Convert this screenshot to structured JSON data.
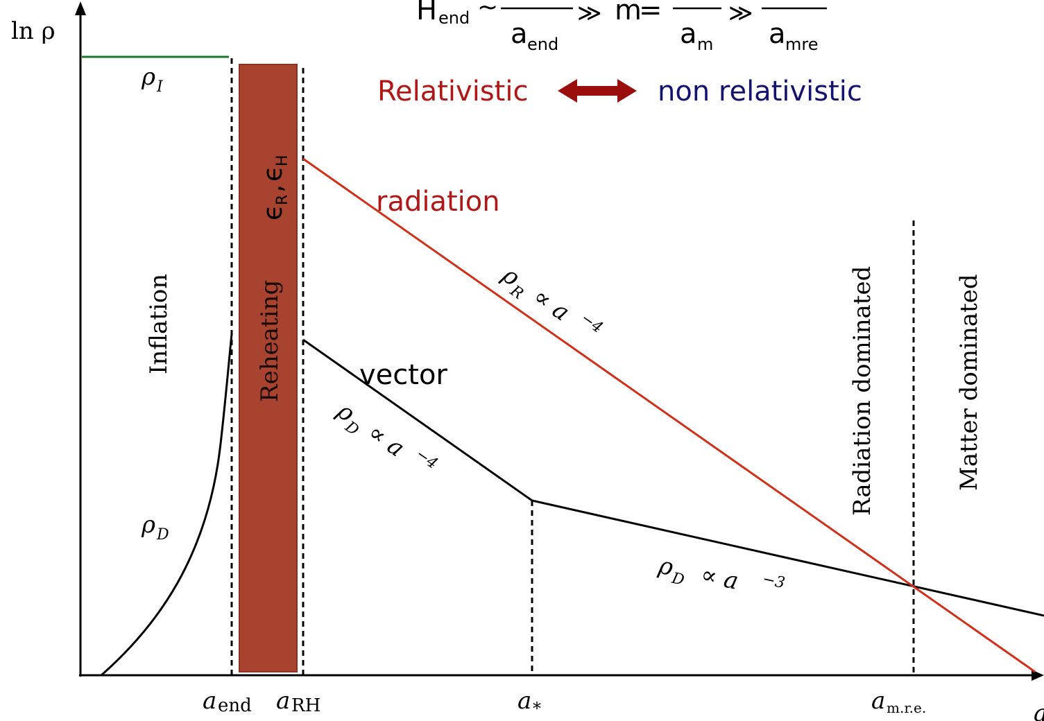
{
  "header": {
    "formula": {
      "h": "H",
      "h_sub": "end",
      "sim": "~",
      "gg1": "≫",
      "m": "m",
      "eq": "=",
      "gg2": "≫",
      "den1": "a",
      "den1_sub": "end",
      "den2": "a",
      "den2_sub": "m",
      "den3": "a",
      "den3_sub": "mre"
    },
    "relativistic": "Relativistic",
    "non_relativistic": "non relativistic"
  },
  "axes": {
    "y_label": "ln ρ",
    "x_label": "a",
    "ticks": {
      "a_end": "a",
      "a_end_sub": "end",
      "a_rh": "a",
      "a_rh_sub": "RH",
      "a_star": "a",
      "a_star_sub": "*",
      "a_mre": "a",
      "a_mre_sub": "m.r.e."
    }
  },
  "labels": {
    "rho_i": "ρ",
    "rho_i_sub": "I",
    "inflation": "Inflation",
    "reheating": "Reheating",
    "epsilon": "ϵ",
    "epsilon_r_sub": "R",
    "epsilon_sep": ",",
    "epsilon_h_sub": "H",
    "radiation": "radiation",
    "vector": "vector",
    "rho_r": "ρ",
    "rho_r_sub": "R",
    "rho_r_rel": "∝ a",
    "rho_r_exp": "−4",
    "rho_d_infl": "ρ",
    "rho_d_infl_sub": "D",
    "rho_d1": "ρ",
    "rho_d1_sub": "D",
    "rho_d1_rel": "∝ a",
    "rho_d1_exp": "−4",
    "rho_d2": "ρ",
    "rho_d2_sub": "D",
    "rho_d2_rel": "∝ a",
    "rho_d2_exp": "−3",
    "radiation_dominated": "Radiation dominated",
    "matter_dominated": "Matter dominated"
  },
  "colors": {
    "radiation": "#d03018",
    "relativistic": "#b01818",
    "non_relativistic": "#141470",
    "arrow": "#9a0e0e",
    "reheating_band": "#a8432f",
    "inflation_line": "#1a7a2a",
    "vector": "#000000"
  }
}
